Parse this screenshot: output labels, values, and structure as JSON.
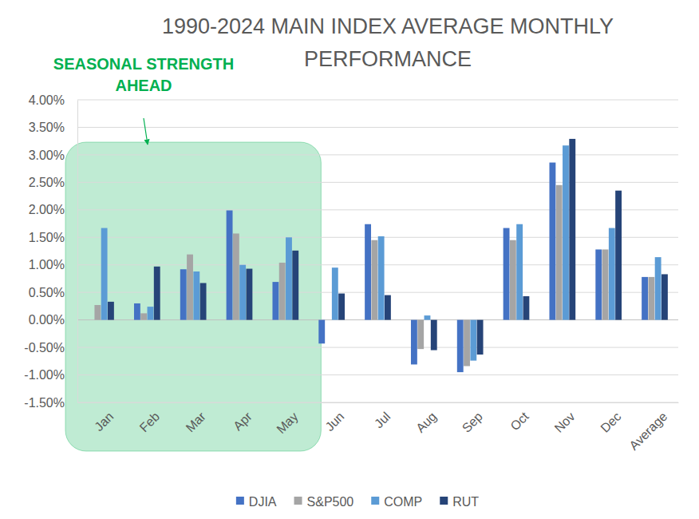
{
  "chart_data": {
    "type": "bar",
    "title": "1990-2024 MAIN INDEX AVERAGE MONTHLY PERFORMANCE",
    "annotation": "SEASONAL STRENGTH AHEAD",
    "categories": [
      "Jan",
      "Feb",
      "Mar",
      "Apr",
      "May",
      "Jun",
      "Jul",
      "Aug",
      "Sep",
      "Oct",
      "Nov",
      "Dec",
      "Average"
    ],
    "series": [
      {
        "name": "DJIA",
        "color": "#4472c4",
        "values": [
          0,
          0.3,
          0.92,
          1.99,
          0.69,
          -0.43,
          1.74,
          -0.81,
          -0.95,
          1.67,
          2.86,
          1.28,
          0.78
        ]
      },
      {
        "name": "S&P500",
        "color": "#a5a5a5",
        "values": [
          0.27,
          0.12,
          1.19,
          1.57,
          1.04,
          0,
          1.45,
          -0.53,
          -0.84,
          1.45,
          2.45,
          1.28,
          0.78
        ]
      },
      {
        "name": "COMP",
        "color": "#5b9bd5",
        "values": [
          1.67,
          0.24,
          0.88,
          1.0,
          1.5,
          0.95,
          1.52,
          0.08,
          -0.74,
          1.74,
          3.17,
          1.67,
          1.14
        ]
      },
      {
        "name": "RUT",
        "color": "#264478",
        "values": [
          0.33,
          0.97,
          0.67,
          0.93,
          1.26,
          0.48,
          0.45,
          -0.55,
          -0.63,
          0.43,
          3.29,
          2.35,
          0.83
        ]
      }
    ],
    "ylim": [
      -1.5,
      4
    ],
    "yticks": [
      {
        "value": -1.5,
        "label": "-1.50%"
      },
      {
        "value": -1,
        "label": "-1.00%"
      },
      {
        "value": -0.5,
        "label": "-0.50%"
      },
      {
        "value": 0,
        "label": "0.00%"
      },
      {
        "value": 0.5,
        "label": "0.50%"
      },
      {
        "value": 1,
        "label": "1.00%"
      },
      {
        "value": 1.5,
        "label": "1.50%"
      },
      {
        "value": 2,
        "label": "2.00%"
      },
      {
        "value": 2.5,
        "label": "2.50%"
      },
      {
        "value": 3,
        "label": "3.00%"
      },
      {
        "value": 3.5,
        "label": "3.50%"
      },
      {
        "value": 4,
        "label": "4.00%"
      }
    ],
    "grid": true,
    "legend": "bottom"
  }
}
